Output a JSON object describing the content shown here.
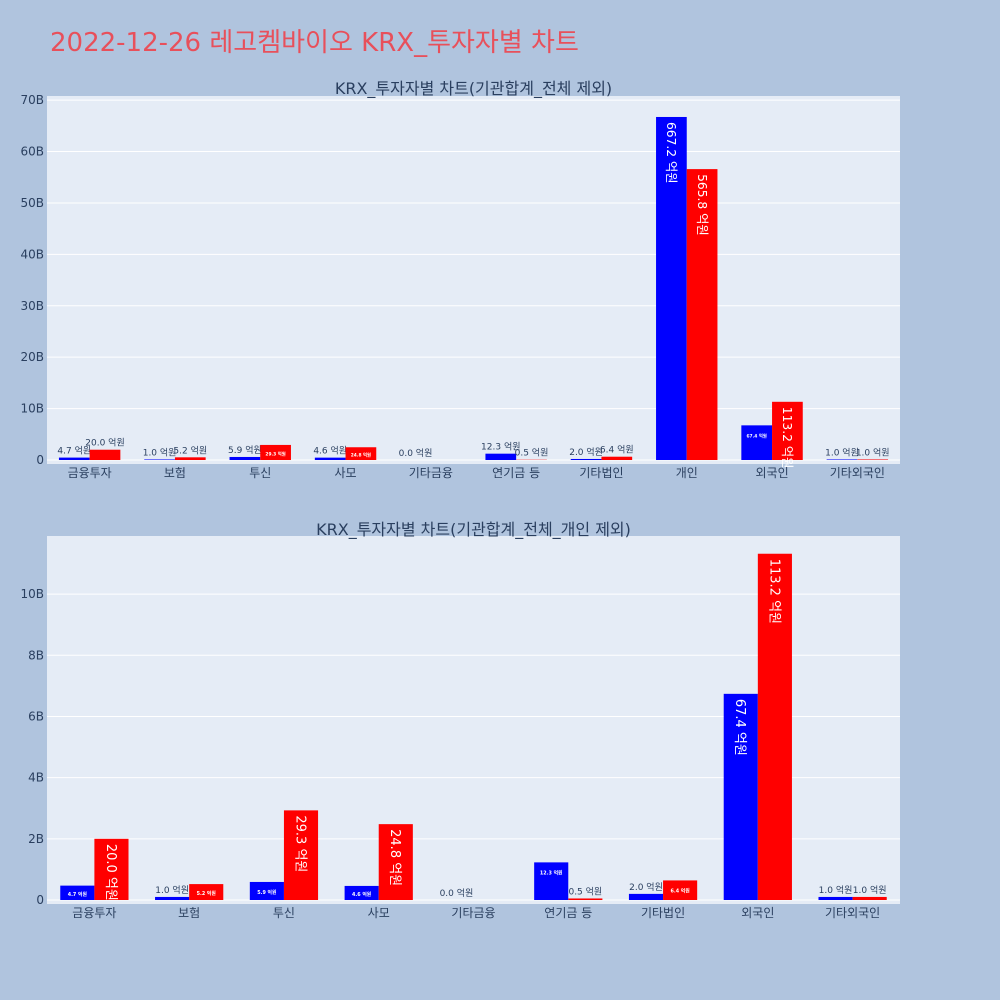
{
  "title": "2022-12-26 레고켐바이오 KRX_투자자별 차트",
  "colors": {
    "buy": "#0000ff",
    "sell": "#ff0000",
    "plot_bg": "#e5ecf6",
    "page_bg": "#b0c4de",
    "title": "#e8505b"
  },
  "chart_data": [
    {
      "type": "bar",
      "title": "KRX_투자자별 차트(기관합계_전체 제외)",
      "categories": [
        "금융투자",
        "보험",
        "투신",
        "사모",
        "기타금융",
        "연기금 등",
        "기타법인",
        "개인",
        "외국인",
        "기타외국인"
      ],
      "series": [
        {
          "values": [
            470000000,
            100000000,
            590000000,
            460000000,
            0,
            1230000000,
            200000000,
            66720000000,
            6740000000,
            100000000
          ],
          "labels": [
            "4.7 억원",
            "1.0 억원",
            "5.9 억원",
            "4.6 억원",
            "0.0 억원",
            "12.3 억원",
            "2.0 억원",
            "667.2 억원",
            "67.4 억원",
            "1.0 억원"
          ]
        },
        {
          "values": [
            2000000000,
            520000000,
            2930000000,
            2480000000,
            null,
            50000000,
            640000000,
            56580000000,
            11320000000,
            100000000
          ],
          "labels": [
            "20.0 억원",
            "5.2 억원",
            "29.3 억원",
            "24.8 억원",
            "",
            "0.5 억원",
            "6.4 억원",
            "565.8 억원",
            "113.2 억원",
            "1.0 억원"
          ]
        }
      ],
      "ytick_values": [
        0,
        10000000000,
        20000000000,
        30000000000,
        40000000000,
        50000000000,
        60000000000,
        70000000000
      ],
      "ytick_labels": [
        "0",
        "10B",
        "20B",
        "30B",
        "40B",
        "50B",
        "60B",
        "70B"
      ],
      "ylim": [
        0,
        70800000000
      ],
      "grid": true
    },
    {
      "type": "bar",
      "title": "KRX_투자자별 차트(기관합계_전체_개인 제외)",
      "categories": [
        "금융투자",
        "보험",
        "투신",
        "사모",
        "기타금융",
        "연기금 등",
        "기타법인",
        "외국인",
        "기타외국인"
      ],
      "series": [
        {
          "values": [
            470000000,
            100000000,
            590000000,
            460000000,
            0,
            1230000000,
            200000000,
            6740000000,
            100000000
          ],
          "labels": [
            "4.7 억원",
            "1.0 억원",
            "5.9 억원",
            "4.6 억원",
            "0.0 억원",
            "12.3 억원",
            "2.0 억원",
            "67.4 억원",
            "1.0 억원"
          ]
        },
        {
          "values": [
            2000000000,
            520000000,
            2930000000,
            2480000000,
            null,
            50000000,
            640000000,
            11320000000,
            100000000
          ],
          "labels": [
            "20.0 억원",
            "5.2 억원",
            "29.3 억원",
            "24.8 억원",
            "",
            "0.5 억원",
            "6.4 억원",
            "113.2 억원",
            "1.0 억원"
          ]
        }
      ],
      "ytick_values": [
        0,
        2000000000,
        4000000000,
        6000000000,
        8000000000,
        10000000000
      ],
      "ytick_labels": [
        "0",
        "2B",
        "4B",
        "6B",
        "8B",
        "10B"
      ],
      "ylim": [
        0,
        11900000000
      ],
      "grid": true
    }
  ]
}
